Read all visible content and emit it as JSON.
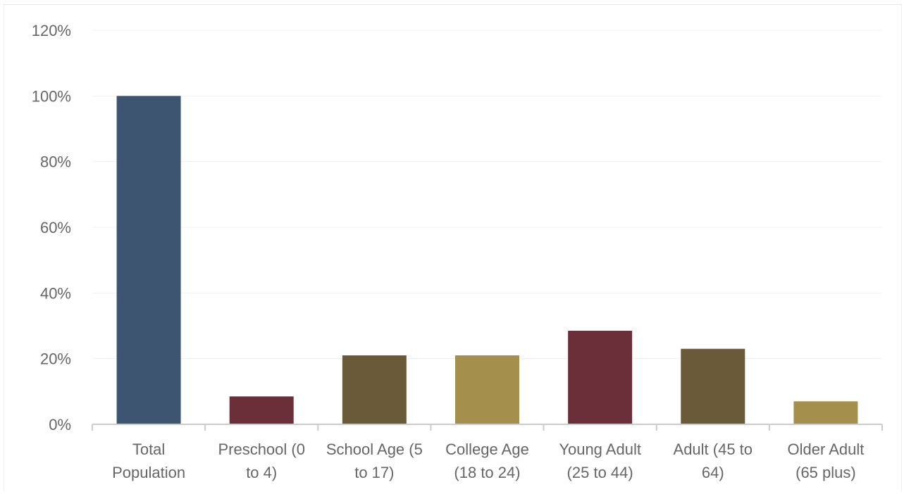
{
  "chart_data": {
    "type": "bar",
    "title": "",
    "xlabel": "",
    "ylabel": "",
    "ylim": [
      0,
      120
    ],
    "yticks": [
      "0%",
      "20%",
      "40%",
      "60%",
      "80%",
      "100%",
      "120%"
    ],
    "grid": true,
    "legend": "none",
    "categories": [
      [
        "Total",
        "Population"
      ],
      [
        "Preschool (0",
        "to 4)"
      ],
      [
        "School Age (5",
        "to 17)"
      ],
      [
        "College Age",
        "(18 to 24)"
      ],
      [
        "Young Adult",
        "(25 to 44)"
      ],
      [
        "Adult (45 to",
        "64)"
      ],
      [
        "Older Adult",
        "(65 plus)"
      ]
    ],
    "values": [
      100,
      8.5,
      21,
      21,
      28.5,
      23,
      7
    ],
    "bar_colors": [
      "#3e5571",
      "#6a2f38",
      "#6a5a39",
      "#a48f4d",
      "#6a2f38",
      "#6a5a39",
      "#a48f4d"
    ],
    "gridline_color": "#f0f0f0",
    "axis_color": "#cccccc"
  }
}
